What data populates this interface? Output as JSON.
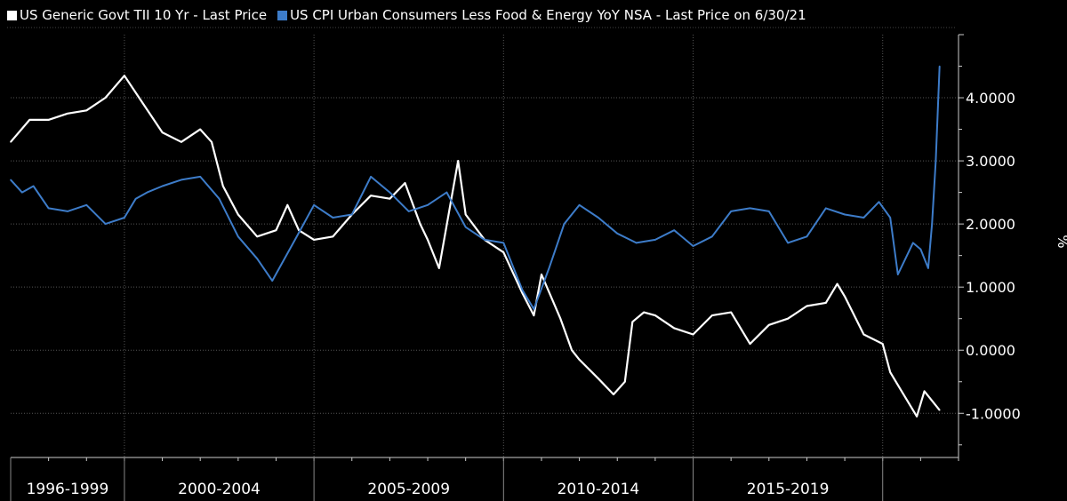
{
  "chart_data": {
    "type": "line",
    "title": "",
    "xlabel": "",
    "ylabel": "%",
    "ylim": [
      -1.7,
      5.0
    ],
    "xlim": [
      1997.0,
      2022.0
    ],
    "y_ticks": [
      "4.0000",
      "3.0000",
      "2.0000",
      "1.0000",
      "0.0000",
      "-1.0000"
    ],
    "y_tick_values": [
      4,
      3,
      2,
      1,
      0,
      -1
    ],
    "x_groups": [
      {
        "label": "1996-1999",
        "start": 1997.0,
        "end": 2000.0
      },
      {
        "label": "2000-2004",
        "start": 2000.0,
        "end": 2005.0
      },
      {
        "label": "2005-2009",
        "start": 2005.0,
        "end": 2010.0
      },
      {
        "label": "2010-2014",
        "start": 2010.0,
        "end": 2015.0
      },
      {
        "label": "2015-2019",
        "start": 2015.0,
        "end": 2020.0
      }
    ],
    "grid": true,
    "legend_position": "top-left",
    "background": "#000000",
    "series": [
      {
        "name": "US Generic Govt TII 10 Yr - Last Price",
        "color": "#ffffff",
        "x": [
          1997.0,
          1997.5,
          1998.0,
          1998.5,
          1999.0,
          1999.5,
          2000.0,
          2000.5,
          2001.0,
          2001.5,
          2002.0,
          2002.3,
          2002.6,
          2003.0,
          2003.5,
          2004.0,
          2004.3,
          2004.6,
          2005.0,
          2005.5,
          2006.0,
          2006.5,
          2007.0,
          2007.4,
          2007.8,
          2008.0,
          2008.3,
          2008.8,
          2009.0,
          2009.5,
          2010.0,
          2010.5,
          2010.8,
          2011.0,
          2011.5,
          2011.8,
          2012.0,
          2012.5,
          2012.9,
          2013.2,
          2013.4,
          2013.7,
          2014.0,
          2014.5,
          2015.0,
          2015.5,
          2016.0,
          2016.5,
          2017.0,
          2017.5,
          2018.0,
          2018.5,
          2018.8,
          2019.0,
          2019.5,
          2020.0,
          2020.2,
          2020.5,
          2020.9,
          2021.1,
          2021.5
        ],
        "y": [
          3.3,
          3.65,
          3.65,
          3.75,
          3.8,
          4.0,
          4.35,
          3.9,
          3.45,
          3.3,
          3.5,
          3.3,
          2.6,
          2.15,
          1.8,
          1.9,
          2.3,
          1.9,
          1.75,
          1.8,
          2.15,
          2.45,
          2.4,
          2.65,
          2.0,
          1.75,
          1.3,
          3.0,
          2.15,
          1.75,
          1.55,
          0.9,
          0.55,
          1.2,
          0.5,
          0.0,
          -0.15,
          -0.45,
          -0.7,
          -0.5,
          0.45,
          0.6,
          0.55,
          0.35,
          0.25,
          0.55,
          0.6,
          0.1,
          0.4,
          0.5,
          0.7,
          0.75,
          1.05,
          0.85,
          0.25,
          0.1,
          -0.35,
          -0.65,
          -1.05,
          -0.65,
          -0.95
        ]
      },
      {
        "name": "US CPI Urban Consumers Less Food & Energy YoY NSA - Last Price on 6/30/21",
        "color": "#3d7cc9",
        "x": [
          1997.0,
          1997.3,
          1997.6,
          1998.0,
          1998.5,
          1999.0,
          1999.5,
          2000.0,
          2000.3,
          2000.6,
          2001.0,
          2001.5,
          2002.0,
          2002.5,
          2003.0,
          2003.5,
          2003.9,
          2004.5,
          2005.0,
          2005.5,
          2006.0,
          2006.5,
          2007.0,
          2007.5,
          2008.0,
          2008.5,
          2009.0,
          2009.5,
          2010.0,
          2010.5,
          2010.8,
          2011.2,
          2011.6,
          2012.0,
          2012.5,
          2013.0,
          2013.5,
          2014.0,
          2014.5,
          2015.0,
          2015.5,
          2016.0,
          2016.5,
          2017.0,
          2017.5,
          2018.0,
          2018.5,
          2019.0,
          2019.5,
          2019.9,
          2020.2,
          2020.4,
          2020.8,
          2021.0,
          2021.2,
          2021.3,
          2021.4,
          2021.5
        ],
        "y": [
          2.7,
          2.5,
          2.6,
          2.25,
          2.2,
          2.3,
          2.0,
          2.1,
          2.4,
          2.5,
          2.6,
          2.7,
          2.75,
          2.4,
          1.8,
          1.45,
          1.1,
          1.75,
          2.3,
          2.1,
          2.15,
          2.75,
          2.5,
          2.2,
          2.3,
          2.5,
          1.95,
          1.75,
          1.7,
          0.95,
          0.65,
          1.3,
          2.0,
          2.3,
          2.1,
          1.85,
          1.7,
          1.75,
          1.9,
          1.65,
          1.8,
          2.2,
          2.25,
          2.2,
          1.7,
          1.8,
          2.25,
          2.15,
          2.1,
          2.35,
          2.1,
          1.2,
          1.7,
          1.6,
          1.3,
          2.0,
          3.0,
          4.5
        ]
      }
    ]
  }
}
